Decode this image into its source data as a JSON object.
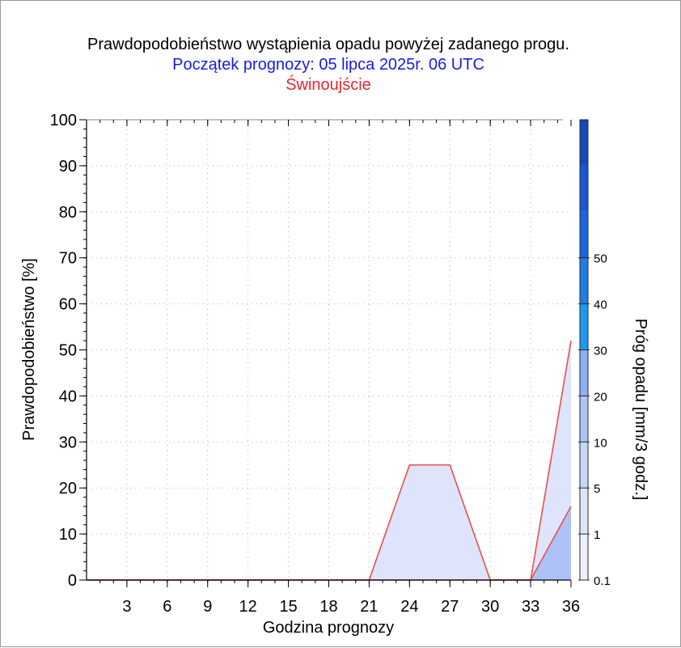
{
  "title": "Prawdopodobieństwo wystąpienia opadu powyżej zadanego progu.",
  "subtitle": "Początek prognozy: 05 lipca 2025r. 06 UTC",
  "station": "Świnoujście",
  "colors": {
    "subtitle": "#1a1ae6",
    "station": "#e6262e",
    "series_line": "#e5504f",
    "fill_low": "#dde4fb",
    "fill_high": "#aec2f7",
    "grid": "#b0b0b0"
  },
  "chart_data": {
    "type": "area",
    "title": "Prawdopodobieństwo wystąpienia opadu powyżej zadanego progu.",
    "xlabel": "Godzina prognozy",
    "ylabel": "Prawdopodobieństwo [%]",
    "xlim": [
      0,
      36
    ],
    "ylim": [
      0,
      100
    ],
    "x_ticks": [
      3,
      6,
      9,
      12,
      15,
      18,
      21,
      24,
      27,
      30,
      33,
      36
    ],
    "y_ticks": [
      0,
      10,
      20,
      30,
      40,
      50,
      60,
      70,
      80,
      90,
      100
    ],
    "grid": true,
    "x": [
      0,
      3,
      6,
      9,
      12,
      15,
      18,
      21,
      24,
      27,
      30,
      33,
      36
    ],
    "series": [
      {
        "name": "0.1",
        "values": [
          0,
          0,
          0,
          0,
          0,
          0,
          0,
          0,
          25,
          25,
          0,
          0,
          52
        ]
      },
      {
        "name": "1",
        "values": [
          0,
          0,
          0,
          0,
          0,
          0,
          0,
          0,
          0,
          0,
          0,
          0,
          16
        ]
      }
    ],
    "colorbar": {
      "label": "Próg opadu [mm/3 godz.]",
      "tick_labels": [
        "0.1",
        "1",
        "5",
        "10",
        "20",
        "30",
        "40",
        "50"
      ],
      "colors": [
        "#eef1fd",
        "#dde5fb",
        "#c8d6f9",
        "#aec2f7",
        "#8eb0f2",
        "#1b9af0",
        "#1c7de8",
        "#1867dd",
        "#1757d4",
        "#1448bd"
      ]
    }
  }
}
